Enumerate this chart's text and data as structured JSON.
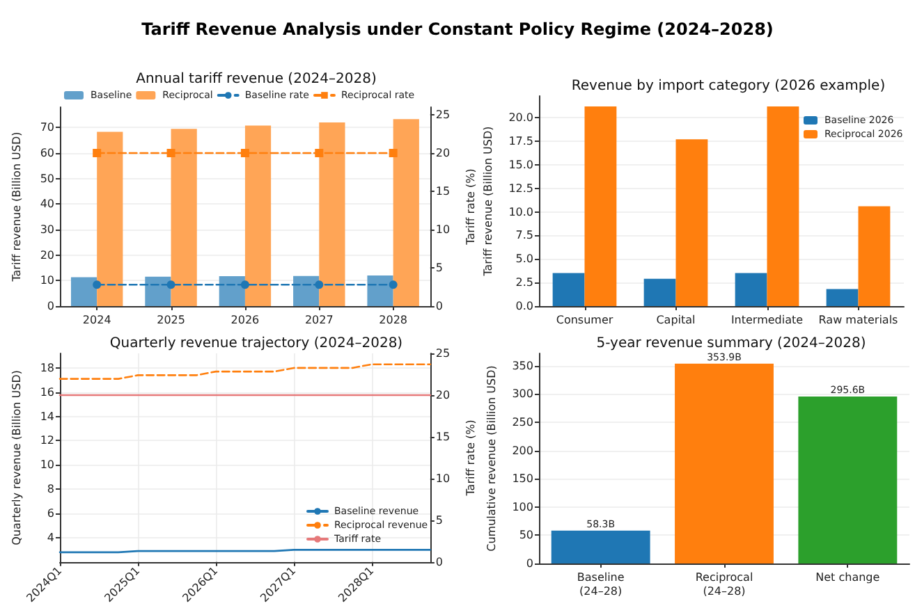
{
  "chart_data": [
    {
      "type": "other",
      "title": "Tariff Revenue Analysis under Constant Policy Regime (2024–2028)"
    },
    {
      "type": "bar",
      "title": "Annual tariff revenue (2024–2028)",
      "ylabel": "Tariff revenue (Billion USD)",
      "y2label": "Tariff rate (%)",
      "categories": [
        "2024",
        "2025",
        "2026",
        "2027",
        "2028"
      ],
      "series": [
        {
          "name": "Baseline",
          "color": "#62a0cb",
          "values": [
            11.3,
            11.5,
            11.7,
            11.8,
            12.0
          ]
        },
        {
          "name": "Reciprocal",
          "color": "#ffa556",
          "values": [
            68.3,
            69.5,
            70.8,
            72.0,
            73.3
          ]
        },
        {
          "name": "Baseline rate",
          "type": "line",
          "axis": "y2",
          "color": "#1f77b4",
          "marker": "circle",
          "line_style": "dashed",
          "values": [
            2.8,
            2.8,
            2.8,
            2.8,
            2.8
          ]
        },
        {
          "name": "Reciprocal rate",
          "type": "line",
          "axis": "y2",
          "color": "#ff7f0e",
          "marker": "square",
          "line_style": "dashed",
          "values": [
            20,
            20,
            20,
            20,
            20
          ]
        }
      ],
      "ylim": [
        0,
        78
      ],
      "yticks": [
        0,
        10,
        20,
        30,
        40,
        50,
        60,
        70
      ],
      "y2lim": [
        0,
        26
      ],
      "y2ticks": [
        0,
        5,
        10,
        15,
        20,
        25
      ],
      "grid": "y",
      "legend": "top"
    },
    {
      "type": "bar",
      "title": "Revenue by import category (2026 example)",
      "ylabel": "Tariff revenue (Billion USD)",
      "categories": [
        "Consumer",
        "Capital",
        "Intermediate",
        "Raw materials"
      ],
      "series": [
        {
          "name": "Baseline 2026",
          "color": "#1f77b4",
          "values": [
            3.5,
            2.9,
            3.5,
            1.8
          ]
        },
        {
          "name": "Reciprocal 2026",
          "color": "#ff7f0e",
          "values": [
            21.2,
            17.7,
            21.2,
            10.6
          ]
        }
      ],
      "ylim": [
        0,
        22.3
      ],
      "yticks": [
        {
          "value": 0,
          "label": "0.0"
        },
        {
          "value": 2.5,
          "label": "2.5"
        },
        {
          "value": 5,
          "label": "5.0"
        },
        {
          "value": 7.5,
          "label": "7.5"
        },
        {
          "value": 10,
          "label": "10.0"
        },
        {
          "value": 12.5,
          "label": "12.5"
        },
        {
          "value": 15,
          "label": "15.0"
        },
        {
          "value": 17.5,
          "label": "17.5"
        },
        {
          "value": 20,
          "label": "20.0"
        }
      ],
      "grid": "y",
      "legend": "top right"
    },
    {
      "type": "line",
      "title": "Quarterly revenue trajectory (2024–2028)",
      "ylabel": "Quarterly revenue (Billion USD)",
      "y2label": "Tariff rate (%)",
      "categories": [
        "2024Q1",
        null,
        null,
        null,
        "2025Q1",
        null,
        null,
        null,
        "2026Q1",
        null,
        null,
        null,
        "2027Q1",
        null,
        null,
        null,
        "2028Q1",
        null,
        null,
        null
      ],
      "series": [
        {
          "name": "Baseline revenue",
          "color": "#1f77b4",
          "line_style": "solid",
          "values": [
            2.8,
            2.8,
            2.8,
            2.8,
            2.9,
            2.9,
            2.9,
            2.9,
            2.9,
            2.9,
            2.9,
            2.9,
            3.0,
            3.0,
            3.0,
            3.0,
            3.0,
            3.0,
            3.0,
            3.0
          ]
        },
        {
          "name": "Reciprocal revenue",
          "color": "#ff7f0e",
          "line_style": "dashed",
          "values": [
            17.1,
            17.1,
            17.1,
            17.1,
            17.4,
            17.4,
            17.4,
            17.4,
            17.7,
            17.7,
            17.7,
            17.7,
            18.0,
            18.0,
            18.0,
            18.0,
            18.3,
            18.3,
            18.3,
            18.3
          ]
        },
        {
          "name": "Tariff rate",
          "color": "#e6797a",
          "line_style": "solid",
          "axis": "y2",
          "values": [
            20,
            20,
            20,
            20,
            20,
            20,
            20,
            20,
            20,
            20,
            20,
            20,
            20,
            20,
            20,
            20,
            20,
            20,
            20,
            20
          ]
        }
      ],
      "ylim": [
        2,
        19.2
      ],
      "yticks": [
        4,
        6,
        8,
        10,
        12,
        14,
        16,
        18
      ],
      "y2lim": [
        0,
        25
      ],
      "y2ticks": [
        0,
        5,
        10,
        15,
        20,
        25
      ],
      "grid": true,
      "legend": "bottom right",
      "marker": "none"
    },
    {
      "type": "bar",
      "title": "5-year revenue summary (2024–2028)",
      "ylabel": "Cumulative revenue (Billion USD)",
      "categories": [
        "Baseline\n(24–28)",
        "Reciprocal\n(24–28)",
        "Net change"
      ],
      "values": [
        58.3,
        353.9,
        295.6
      ],
      "colors": [
        "#1f77b4",
        "#ff7f0e",
        "#2ca02c"
      ],
      "value_labels": [
        "58.3B",
        "353.9B",
        "295.6B"
      ],
      "ylim": [
        0,
        372
      ],
      "yticks": [
        0,
        50,
        100,
        150,
        200,
        250,
        300,
        350
      ],
      "grid": "y"
    }
  ]
}
